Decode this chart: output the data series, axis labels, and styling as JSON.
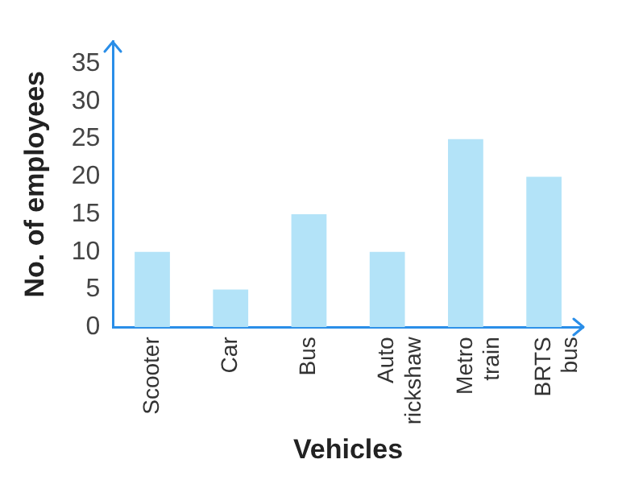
{
  "chart_data": {
    "type": "bar",
    "xlabel": "Vehicles",
    "ylabel": "No. of employees",
    "categories": [
      "Scooter",
      "Car",
      "Bus",
      "Auto rickshaw",
      "Metro train",
      "BRTS bus"
    ],
    "values": [
      10,
      5,
      15,
      10,
      25,
      20
    ],
    "color": "#b3e3f8",
    "ylim": [
      0,
      38
    ],
    "yticks": [
      0,
      5,
      10,
      15,
      20,
      25,
      30,
      35
    ],
    "grid": false,
    "legend": false
  }
}
